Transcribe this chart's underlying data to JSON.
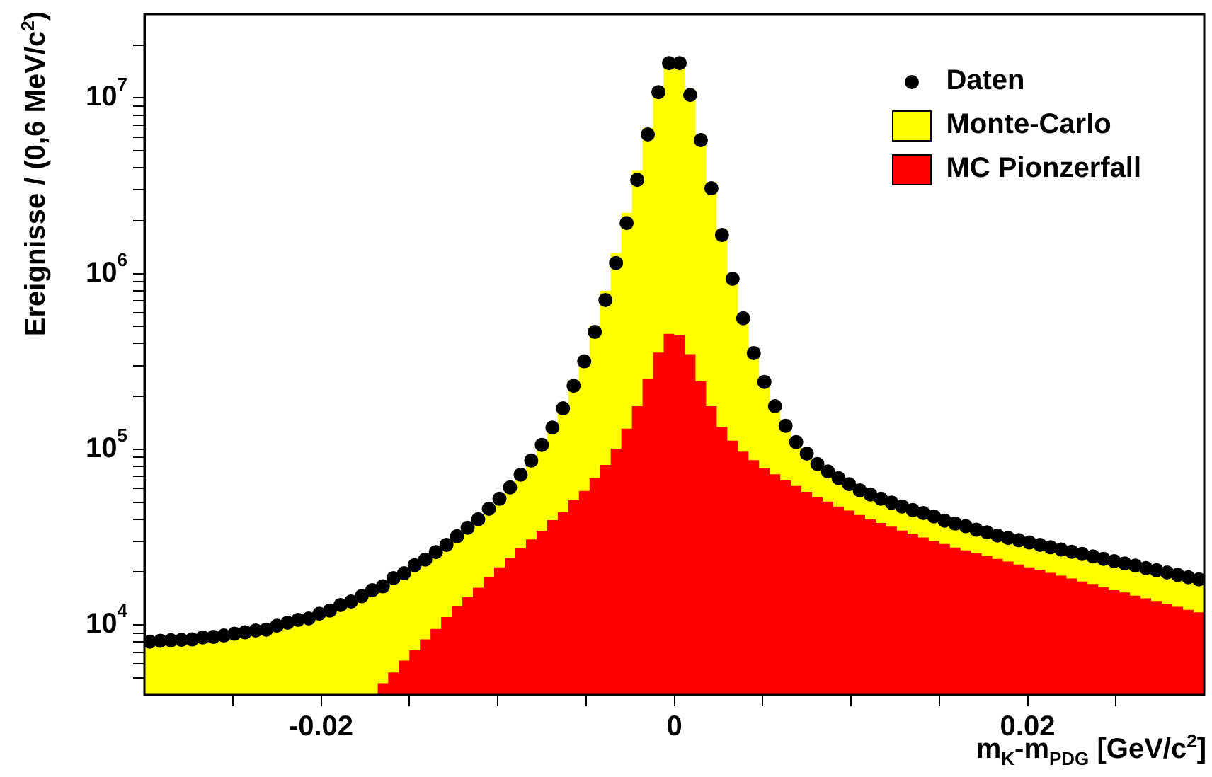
{
  "chart_data": {
    "type": "histogram",
    "xlabel": "m$_{K}$-m$_{PDG}$ [GeV/c$^{2}$]",
    "ylabel": "Ereignisse / (0,6 MeV/c$^{2}$)",
    "bins": [
      -0.03,
      -0.0294,
      -0.0288,
      -0.0282,
      -0.0276,
      -0.027,
      -0.0264,
      -0.0258,
      -0.0252,
      -0.0246,
      -0.024,
      -0.0234,
      -0.0228,
      -0.0222,
      -0.0216,
      -0.021,
      -0.0204,
      -0.0198,
      -0.0192,
      -0.0186,
      -0.018,
      -0.0174,
      -0.0168,
      -0.0162,
      -0.0156,
      -0.015,
      -0.0144,
      -0.0138,
      -0.0132,
      -0.0126,
      -0.012,
      -0.0114,
      -0.0108,
      -0.0102,
      -0.0096,
      -0.009,
      -0.0084,
      -0.0078,
      -0.0072,
      -0.0066,
      -0.006,
      -0.0054,
      -0.0048,
      -0.0042,
      -0.0036,
      -0.003,
      -0.0024,
      -0.0018,
      -0.0012,
      -0.0006,
      0,
      0.0006,
      0.0012,
      0.0018,
      0.0024,
      0.003,
      0.0036,
      0.0042,
      0.0048,
      0.0054,
      0.006,
      0.0066,
      0.0072,
      0.0078,
      0.0084,
      0.009,
      0.0096,
      0.0102,
      0.0108,
      0.0114,
      0.012,
      0.0126,
      0.0132,
      0.0138,
      0.0144,
      0.015,
      0.0156,
      0.0162,
      0.0168,
      0.0174,
      0.018,
      0.0186,
      0.0192,
      0.0198,
      0.0204,
      0.021,
      0.0216,
      0.0222,
      0.0228,
      0.0234,
      0.024,
      0.0246,
      0.0252,
      0.0258,
      0.0264,
      0.027,
      0.0276,
      0.0282,
      0.0288,
      0.0294,
      0.03
    ],
    "series": [
      {
        "name": "Monte-Carlo",
        "type": "histogram",
        "color": "#ffff00",
        "values": [
          7480,
          7560,
          7610,
          7650,
          7700,
          7900,
          7950,
          8100,
          8300,
          8440,
          8660,
          8760,
          9210,
          9580,
          9950,
          10100,
          10800,
          11300,
          12100,
          12600,
          13600,
          14700,
          15400,
          17200,
          18300,
          20400,
          21900,
          24200,
          26600,
          29800,
          33300,
          37200,
          42700,
          48600,
          56500,
          66700,
          80300,
          98600,
          124000,
          176000,
          248000,
          337000,
          505000,
          800000,
          1310000,
          2220000,
          3880000,
          6760000,
          11200000,
          15600000,
          15600000,
          11200000,
          6170000,
          3330000,
          1790000,
          996000,
          589000,
          370000,
          248000,
          182000,
          142000,
          102000,
          88000,
          76700,
          69600,
          63700,
          58900,
          54300,
          51400,
          48600,
          46200,
          44000,
          41900,
          40400,
          38600,
          36500,
          35200,
          33900,
          32500,
          31300,
          30000,
          29100,
          28300,
          27400,
          26600,
          25800,
          25000,
          24300,
          23600,
          22900,
          22100,
          21500,
          20800,
          20300,
          19600,
          19100,
          18500,
          17900,
          17400,
          16900
        ]
      },
      {
        "name": "MC Pionzerfall",
        "type": "histogram",
        "color": "#ff0000",
        "bins": [
          -0.0168,
          -0.0162,
          -0.0156,
          -0.015,
          -0.0144,
          -0.0138,
          -0.0132,
          -0.0126,
          -0.012,
          -0.0114,
          -0.0108,
          -0.0102,
          -0.0096,
          -0.009,
          -0.0084,
          -0.0078,
          -0.0072,
          -0.0066,
          -0.006,
          -0.0054,
          -0.0048,
          -0.0042,
          -0.0036,
          -0.003,
          -0.0024,
          -0.0018,
          -0.0012,
          -0.0006,
          0,
          0.0006,
          0.0012,
          0.0018,
          0.0024,
          0.003,
          0.0036,
          0.0042,
          0.0048,
          0.0054,
          0.006,
          0.0066,
          0.0072,
          0.0078,
          0.0084,
          0.009,
          0.0096,
          0.0102,
          0.0108,
          0.0114,
          0.012,
          0.0126,
          0.0132,
          0.0138,
          0.0144,
          0.015,
          0.0156,
          0.0162,
          0.0168,
          0.0174,
          0.018,
          0.0186,
          0.0192,
          0.0198,
          0.0204,
          0.021,
          0.0216,
          0.0222,
          0.0228,
          0.0234,
          0.024,
          0.0246,
          0.0252,
          0.0258,
          0.0264,
          0.027,
          0.0276,
          0.0282,
          0.0288,
          0.0294,
          0.03
        ],
        "values": [
          4660,
          5370,
          6270,
          7190,
          8280,
          9490,
          11100,
          12800,
          14400,
          16300,
          18700,
          21300,
          24100,
          27300,
          30700,
          34300,
          39500,
          43900,
          51300,
          58000,
          68500,
          81500,
          101000,
          131000,
          176000,
          251000,
          355000,
          454000,
          449000,
          348000,
          244000,
          176000,
          134000,
          112000,
          97000,
          86700,
          78000,
          72000,
          66500,
          61800,
          57300,
          53500,
          50400,
          47300,
          44800,
          42300,
          40000,
          38100,
          36300,
          34500,
          32900,
          31500,
          30100,
          28900,
          27600,
          26600,
          25600,
          24700,
          23800,
          23000,
          22100,
          21300,
          20600,
          19800,
          19100,
          18400,
          17700,
          17100,
          16400,
          15800,
          15300,
          14700,
          14200,
          13700,
          13200,
          12700,
          12200,
          11800
        ]
      },
      {
        "name": "Daten",
        "type": "scatter",
        "color": "#000000",
        "x": [
          -0.0297,
          -0.0291,
          -0.0285,
          -0.0279,
          -0.0273,
          -0.0267,
          -0.0261,
          -0.0255,
          -0.0249,
          -0.0243,
          -0.0237,
          -0.0231,
          -0.0225,
          -0.0219,
          -0.0213,
          -0.0207,
          -0.0201,
          -0.0195,
          -0.0189,
          -0.0183,
          -0.0177,
          -0.0171,
          -0.0165,
          -0.0159,
          -0.0153,
          -0.0147,
          -0.0141,
          -0.0135,
          -0.0129,
          -0.0123,
          -0.0117,
          -0.0111,
          -0.0105,
          -0.0099,
          -0.0093,
          -0.0087,
          -0.0081,
          -0.0075,
          -0.0069,
          -0.0063,
          -0.0057,
          -0.0051,
          -0.0045,
          -0.0039,
          -0.0033,
          -0.0027,
          -0.0021,
          -0.0015,
          -0.0009,
          -0.0003,
          0.0003,
          0.0009,
          0.0015,
          0.0021,
          0.0027,
          0.0033,
          0.0039,
          0.0045,
          0.0051,
          0.0057,
          0.0063,
          0.0069,
          0.0075,
          0.0081,
          0.0087,
          0.0093,
          0.0099,
          0.0105,
          0.0111,
          0.0117,
          0.0123,
          0.0129,
          0.0135,
          0.0141,
          0.0147,
          0.0153,
          0.0159,
          0.0165,
          0.0171,
          0.0177,
          0.0183,
          0.0189,
          0.0195,
          0.0201,
          0.0207,
          0.0213,
          0.0219,
          0.0225,
          0.0231,
          0.0237,
          0.0243,
          0.0249,
          0.0255,
          0.0261,
          0.0267,
          0.0273,
          0.0279,
          0.0285,
          0.0291,
          0.0297
        ],
        "values": [
          8040,
          8130,
          8180,
          8230,
          8280,
          8490,
          8550,
          8710,
          8920,
          9080,
          9310,
          9420,
          9900,
          10300,
          10700,
          10900,
          11600,
          12100,
          13000,
          13600,
          14600,
          15800,
          16600,
          18500,
          19700,
          21900,
          23600,
          26000,
          28600,
          32000,
          35800,
          40000,
          45900,
          52300,
          60700,
          71700,
          86300,
          106000,
          133000,
          171000,
          230000,
          317000,
          466000,
          708000,
          1150000,
          1940000,
          3420000,
          6200000,
          10800000,
          15800000,
          15800000,
          10400000,
          5750000,
          3060000,
          1660000,
          935000,
          557000,
          353000,
          242000,
          176000,
          136000,
          110000,
          94600,
          82500,
          74800,
          68500,
          63300,
          58400,
          55300,
          52300,
          49700,
          47300,
          45100,
          43400,
          41500,
          39300,
          37800,
          36500,
          34900,
          33700,
          32300,
          31300,
          30400,
          29500,
          28600,
          27700,
          26900,
          26100,
          25400,
          24600,
          23800,
          23100,
          22400,
          21800,
          21100,
          20500,
          19900,
          19300,
          18700,
          18200
        ]
      }
    ],
    "xlim": [
      -0.03,
      0.03
    ],
    "xticks": [
      {
        "value": -0.025,
        "label": null
      },
      -0.02,
      {
        "value": -0.015,
        "label": null
      },
      {
        "value": -0.01,
        "label": null
      },
      {
        "value": -0.005,
        "label": null
      },
      0,
      {
        "value": 0.005,
        "label": null
      },
      {
        "value": 0.01,
        "label": null
      },
      {
        "value": 0.015,
        "label": null
      },
      0.02,
      {
        "value": 0.025,
        "label": null
      }
    ],
    "ylim": [
      4000,
      30000000
    ],
    "log": "y",
    "yticks": [
      {
        "value": 5000,
        "label": null
      },
      {
        "value": 6000,
        "label": null
      },
      {
        "value": 7000,
        "label": null
      },
      {
        "value": 8000,
        "label": null
      },
      {
        "value": 9000,
        "label": null
      },
      {
        "value": 10000,
        "label": "10$^{4}$"
      },
      {
        "value": 20000,
        "label": null
      },
      {
        "value": 30000,
        "label": null
      },
      {
        "value": 40000,
        "label": null
      },
      {
        "value": 50000,
        "label": null
      },
      {
        "value": 60000,
        "label": null
      },
      {
        "value": 70000,
        "label": null
      },
      {
        "value": 80000,
        "label": null
      },
      {
        "value": 90000,
        "label": null
      },
      {
        "value": 100000,
        "label": "10$^{5}$"
      },
      {
        "value": 200000,
        "label": null
      },
      {
        "value": 300000,
        "label": null
      },
      {
        "value": 400000,
        "label": null
      },
      {
        "value": 500000,
        "label": null
      },
      {
        "value": 600000,
        "label": null
      },
      {
        "value": 700000,
        "label": null
      },
      {
        "value": 800000,
        "label": null
      },
      {
        "value": 900000,
        "label": null
      },
      {
        "value": 1000000,
        "label": "10$^{6}$"
      },
      {
        "value": 2000000,
        "label": null
      },
      {
        "value": 3000000,
        "label": null
      },
      {
        "value": 4000000,
        "label": null
      },
      {
        "value": 5000000,
        "label": null
      },
      {
        "value": 6000000,
        "label": null
      },
      {
        "value": 7000000,
        "label": null
      },
      {
        "value": 8000000,
        "label": null
      },
      {
        "value": 9000000,
        "label": null
      },
      {
        "value": 10000000,
        "label": "10$^{7}$"
      },
      {
        "value": 20000000,
        "label": null
      }
    ],
    "legend": "top right",
    "marker": "circle"
  }
}
